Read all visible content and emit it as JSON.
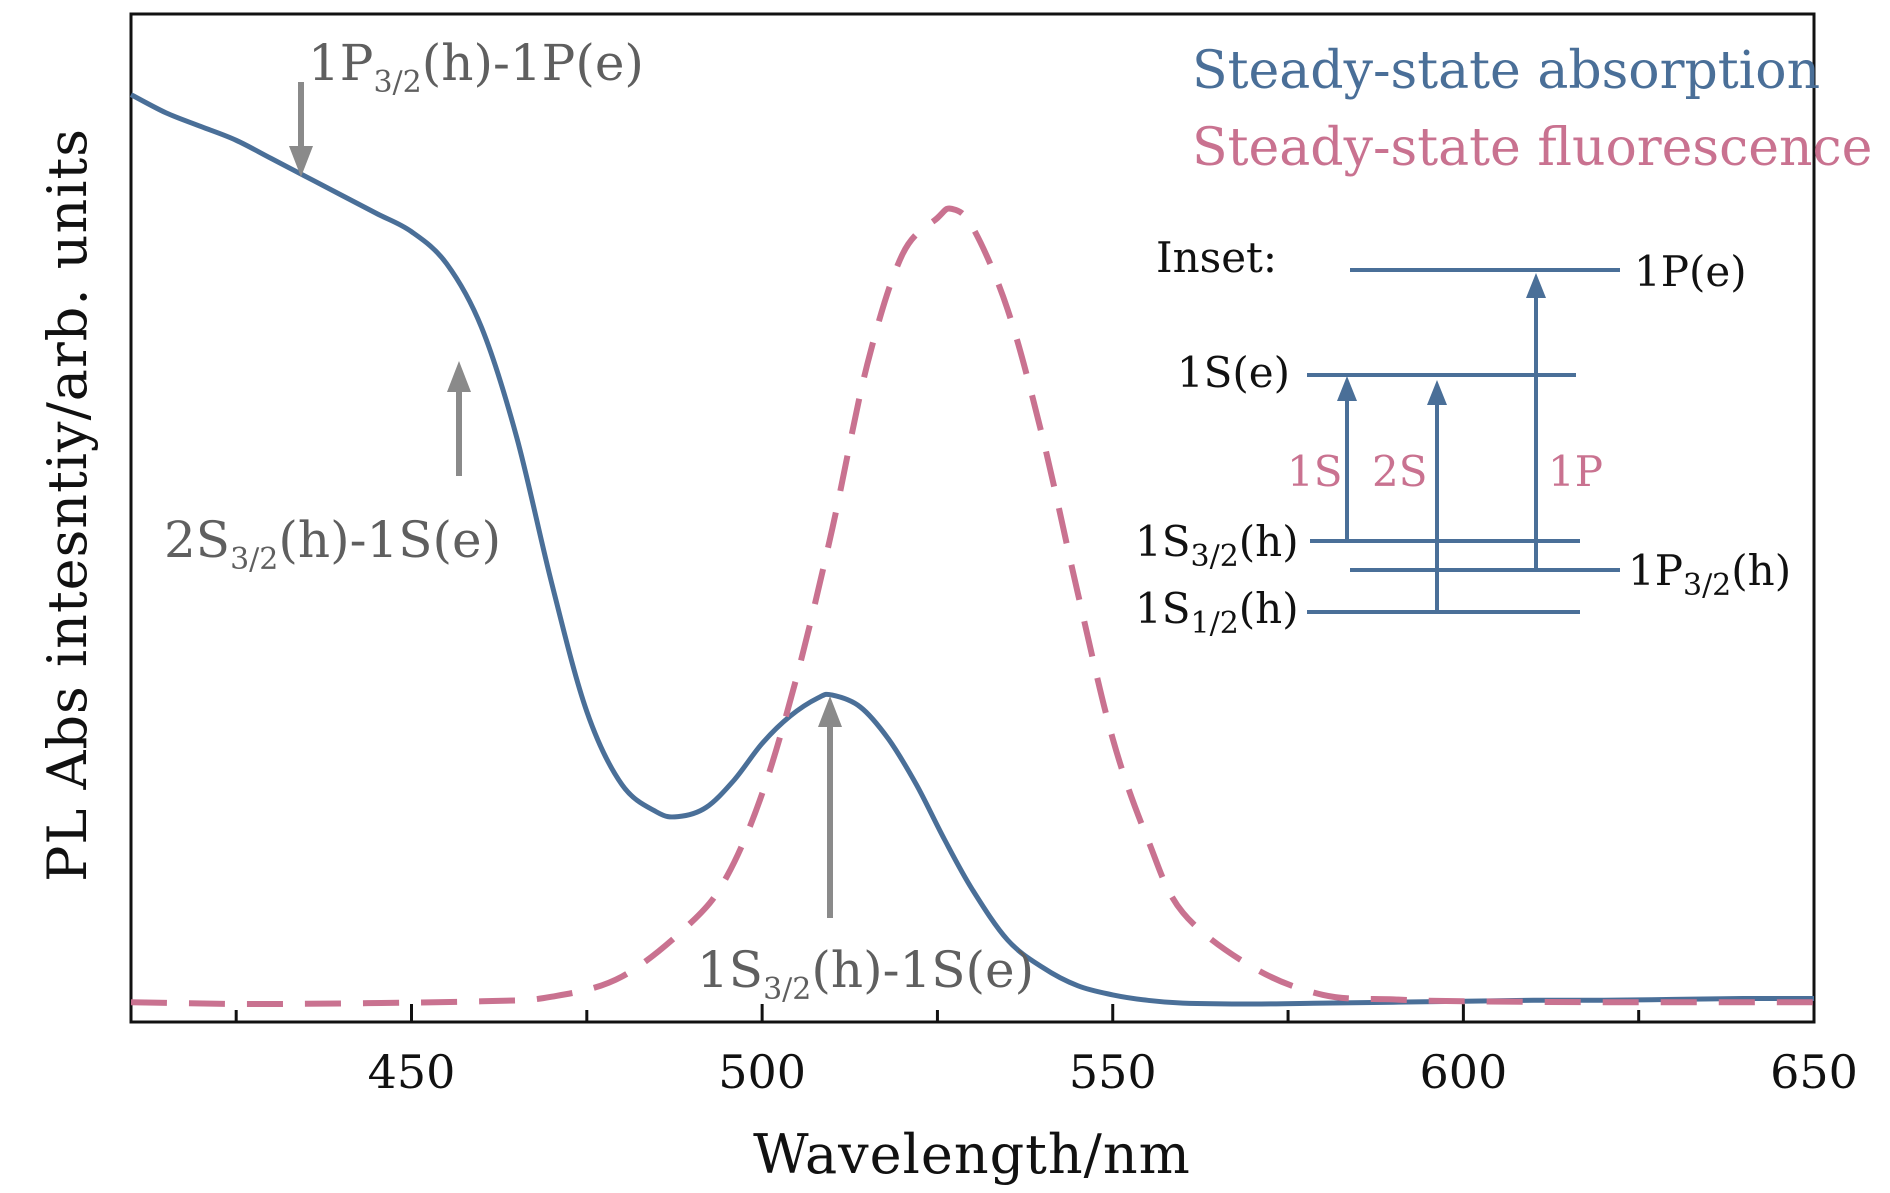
{
  "chart_data": {
    "type": "line",
    "xlabel": "Wavelength/nm",
    "ylabel": "PL Abs intesntiy/arb. units",
    "xlim": [
      410,
      650
    ],
    "ylim": [
      0,
      1.0
    ],
    "xticks": [
      450,
      500,
      550,
      600,
      650
    ],
    "y_tick_labels_shown": false,
    "grid": false,
    "legend_position": "top-right",
    "series": [
      {
        "name": "Steady-state absorption",
        "style": "solid",
        "color": "#4a6f98",
        "x": [
          410,
          415,
          420,
          425,
          430,
          435,
          440,
          445,
          450,
          455,
          460,
          465,
          470,
          475,
          480,
          485,
          488,
          492,
          496,
          500,
          504,
          508,
          510,
          514,
          518,
          522,
          526,
          530,
          535,
          540,
          545,
          550,
          555,
          560,
          570,
          580,
          590,
          600,
          610,
          620,
          630,
          640,
          650
        ],
        "y": [
          0.995,
          0.975,
          0.96,
          0.945,
          0.925,
          0.905,
          0.885,
          0.865,
          0.845,
          0.81,
          0.74,
          0.62,
          0.46,
          0.32,
          0.24,
          0.21,
          0.205,
          0.215,
          0.245,
          0.285,
          0.315,
          0.335,
          0.338,
          0.325,
          0.29,
          0.24,
          0.18,
          0.125,
          0.07,
          0.04,
          0.02,
          0.01,
          0.004,
          0.001,
          0.0,
          0.001,
          0.002,
          0.003,
          0.004,
          0.004,
          0.005,
          0.006,
          0.006
        ]
      },
      {
        "name": "Steady-state fluorescence",
        "style": "dashed",
        "color": "#c97290",
        "x": [
          410,
          430,
          460,
          470,
          480,
          490,
          495,
          500,
          505,
          510,
          515,
          520,
          525,
          527,
          530,
          535,
          540,
          545,
          550,
          555,
          560,
          570,
          580,
          590,
          600,
          620,
          650
        ],
        "y": [
          0.002,
          0.0,
          0.003,
          0.008,
          0.03,
          0.09,
          0.14,
          0.23,
          0.36,
          0.52,
          0.7,
          0.82,
          0.86,
          0.87,
          0.85,
          0.76,
          0.62,
          0.45,
          0.29,
          0.18,
          0.1,
          0.04,
          0.01,
          0.005,
          0.003,
          0.002,
          0.002
        ]
      }
    ],
    "annotations": [
      {
        "text": "1P3/2(h)-1P(e)",
        "main": "1P",
        "sub": "3/2",
        "tail": "(h)-1P(e)",
        "arrow_at_x": 433
      },
      {
        "text": "2S3/2(h)-1S(e)",
        "main": "2S",
        "sub": "3/2",
        "tail": "(h)-1S(e)",
        "arrow_at_x": 457
      },
      {
        "text": "1S3/2(h)-1S(e)",
        "main": "1S",
        "sub": "3/2",
        "tail": "(h)-1S(e)",
        "arrow_at_x": 509
      }
    ],
    "inset": {
      "title": "Inset:",
      "levels": [
        {
          "text": "1P(e)",
          "main": "1P(e)",
          "sub": "",
          "tail": ""
        },
        {
          "text": "1S(e)",
          "main": "1S(e)",
          "sub": "",
          "tail": ""
        },
        {
          "text": "1S3/2(h)",
          "main": "1S",
          "sub": "3/2",
          "tail": "(h)"
        },
        {
          "text": "1P3/2(h)",
          "main": "1P",
          "sub": "3/2",
          "tail": "(h)"
        },
        {
          "text": "1S1/2(h)",
          "main": "1S",
          "sub": "1/2",
          "tail": "(h)"
        }
      ],
      "transitions": [
        "1S",
        "2S",
        "1P"
      ]
    }
  },
  "colors": {
    "absorption": "#4a6f98",
    "fluorescence": "#c97290",
    "annotation": "#8a8a8a",
    "axis": "#111111"
  }
}
